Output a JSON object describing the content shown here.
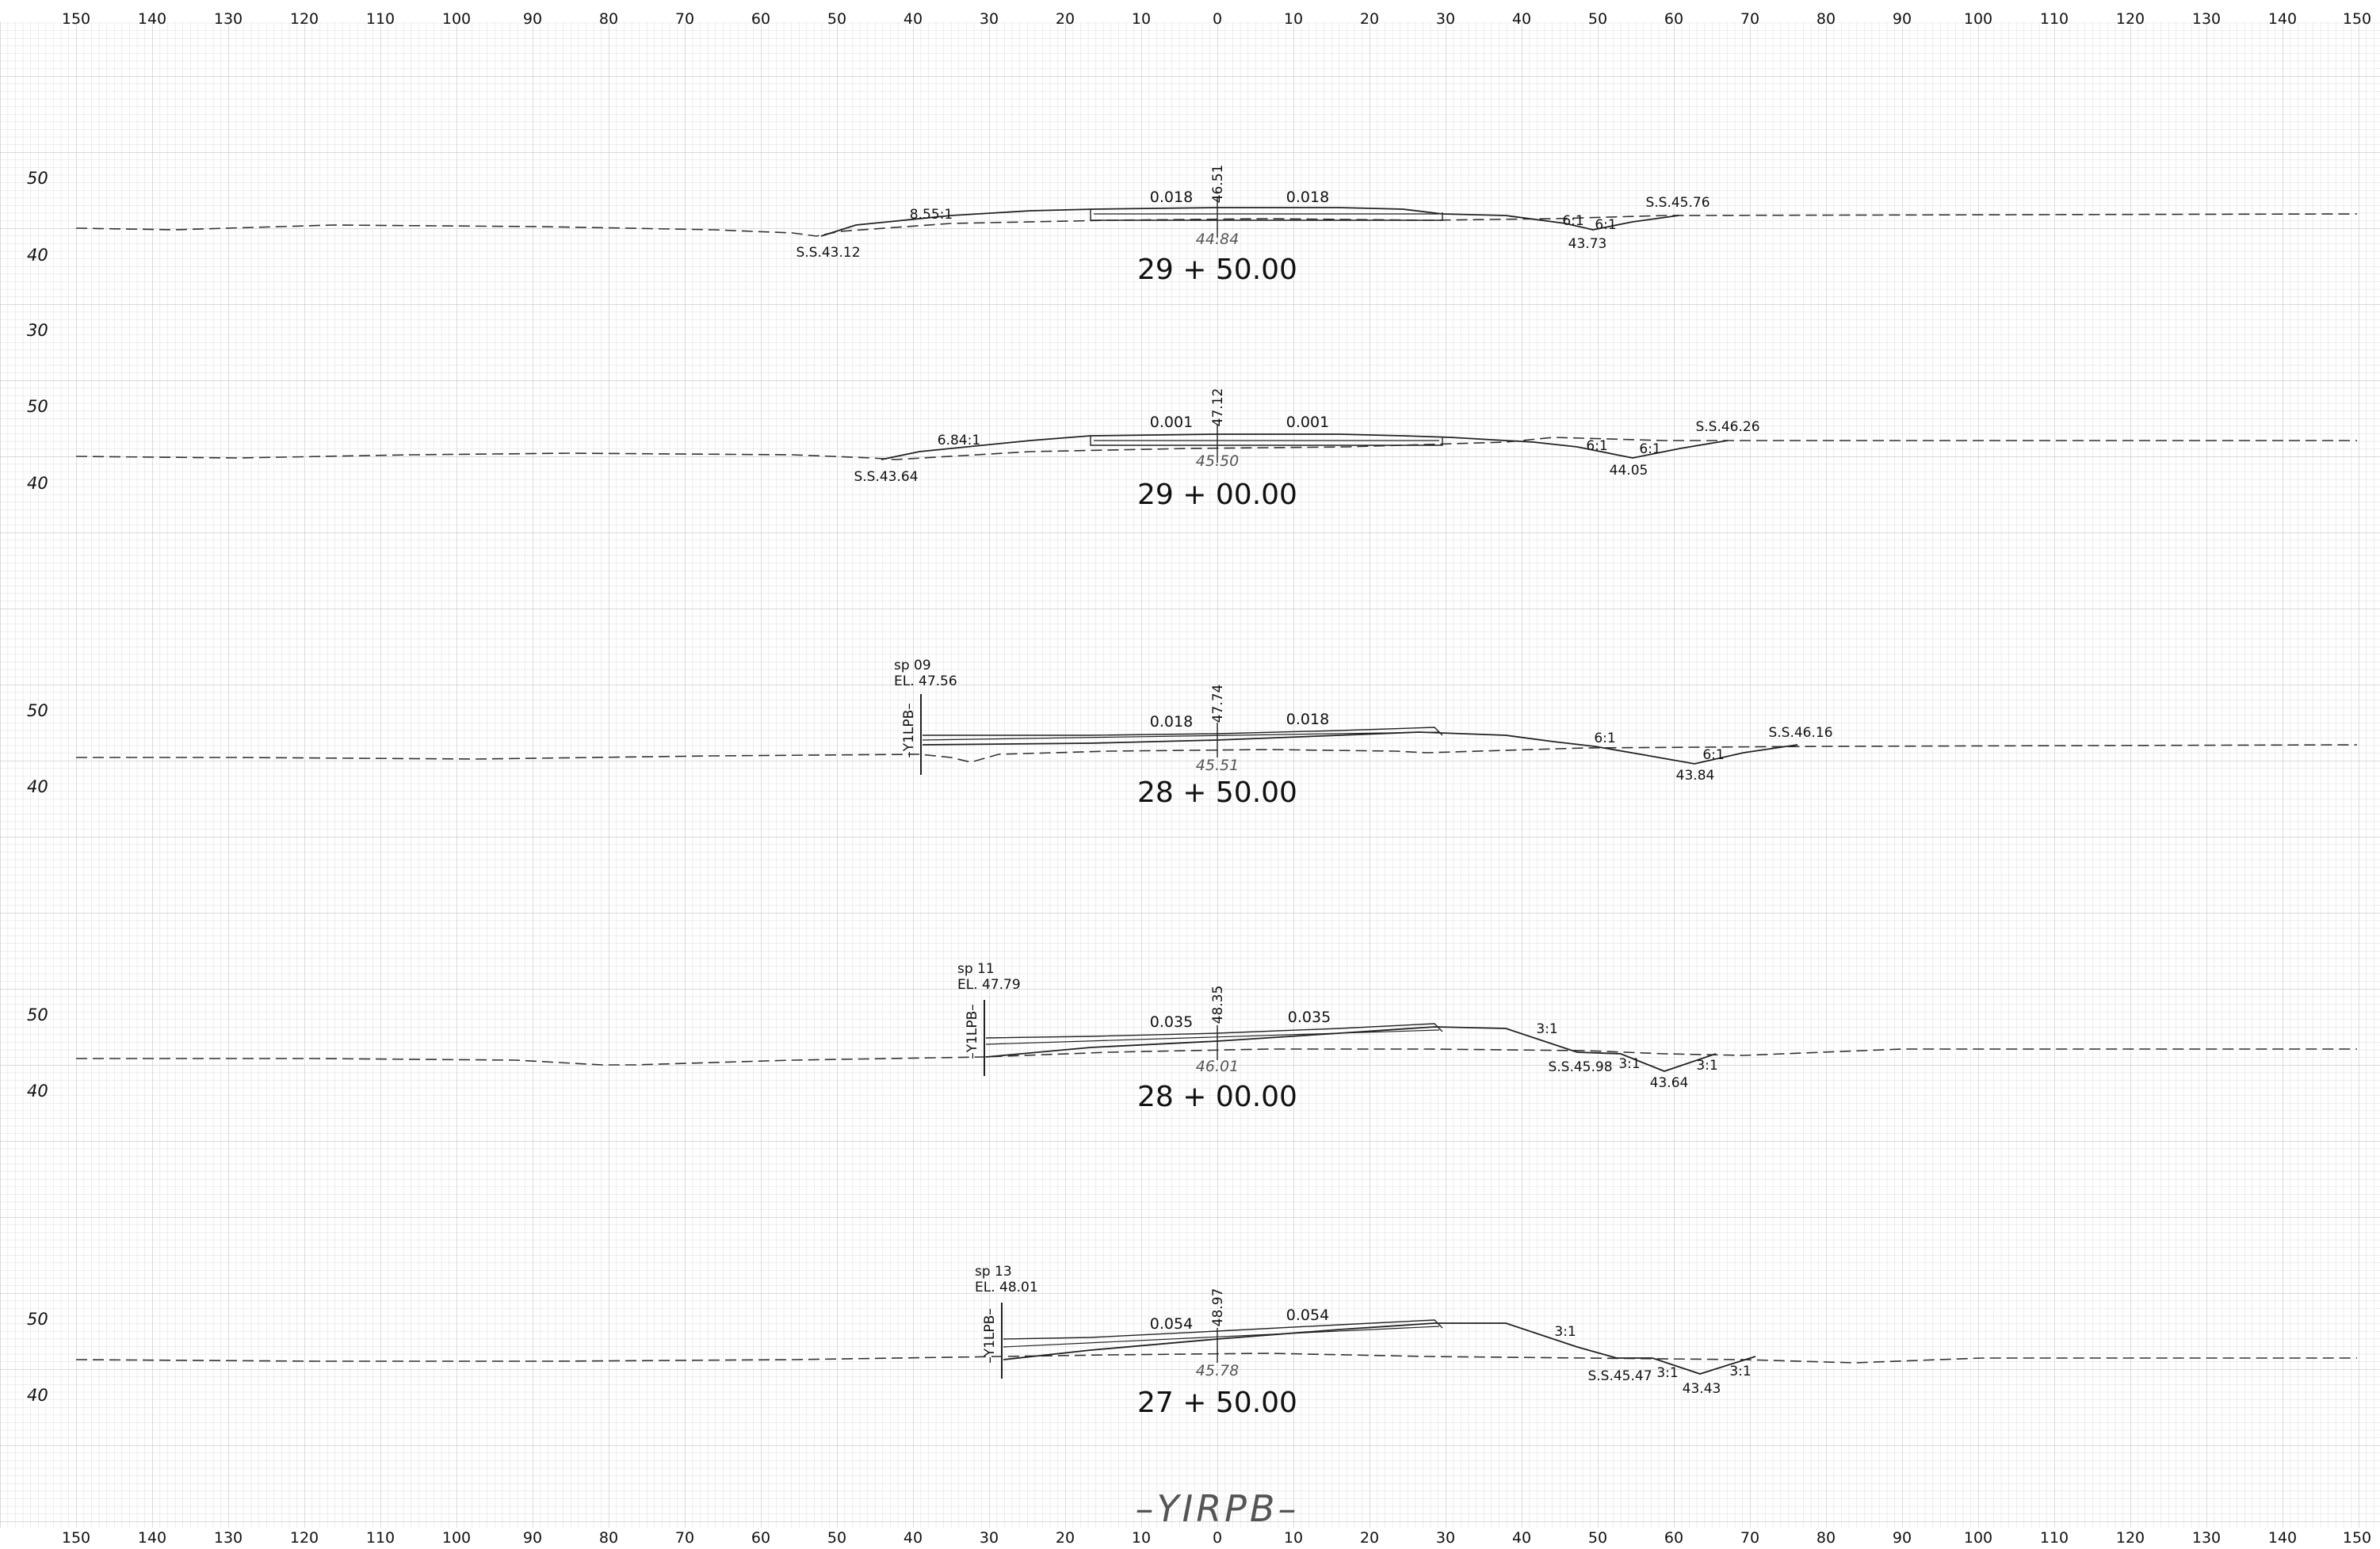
{
  "drawing": {
    "title": "–YIRPB–",
    "x_axis_labels": [
      "150",
      "140",
      "130",
      "120",
      "110",
      "100",
      "90",
      "80",
      "70",
      "60",
      "50",
      "40",
      "30",
      "20",
      "10",
      "0",
      "10",
      "20",
      "30",
      "40",
      "50",
      "60",
      "70",
      "80",
      "90",
      "100",
      "110",
      "120",
      "130",
      "140",
      "150"
    ]
  },
  "sections": [
    {
      "station": "29 + 50.00",
      "elev_labels": [
        "50",
        "40",
        "30"
      ],
      "cl_elev": "46.51",
      "grade_left": "0.018",
      "grade_right": "0.018",
      "ground_elev": "44.84",
      "slope_labels": [
        "8.55:1",
        "6:1",
        "6:1"
      ],
      "left_stake": "S.S.43.12",
      "right_stake": "S.S.45.76",
      "ditch_elev": "43.73"
    },
    {
      "station": "29 + 00.00",
      "elev_labels": [
        "50",
        "40"
      ],
      "cl_elev": "47.12",
      "grade_left": "0.001",
      "grade_right": "0.001",
      "ground_elev": "45.50",
      "slope_labels": [
        "6.84:1",
        "6:1",
        "6:1"
      ],
      "left_stake": "S.S.43.64",
      "right_stake": "S.S.46.26",
      "ditch_elev": "44.05"
    },
    {
      "station": "28 + 50.00",
      "elev_labels": [
        "50",
        "40"
      ],
      "cl_elev": "47.74",
      "grade_left": "0.018",
      "grade_right": "0.018",
      "ground_elev": "45.51",
      "slope_labels": [
        "6:1",
        "6:1"
      ],
      "right_stake": "S.S.46.16",
      "ditch_elev": "43.84",
      "sp": "sp  09",
      "sp_el": "EL. 47.56",
      "tie_label": "–Y1LPB–"
    },
    {
      "station": "28 + 00.00",
      "elev_labels": [
        "50",
        "40"
      ],
      "cl_elev": "48.35",
      "grade_left": "0.035",
      "grade_right": "0.035",
      "ground_elev": "46.01",
      "slope_labels": [
        "3:1",
        "3:1",
        "3:1"
      ],
      "right_stake": "S.S.45.98",
      "ditch_elev": "43.64",
      "sp": "sp  11",
      "sp_el": "EL. 47.79",
      "tie_label": "–Y1LPB–"
    },
    {
      "station": "27 + 50.00",
      "elev_labels": [
        "50",
        "40"
      ],
      "cl_elev": "48.97",
      "grade_left": "0.054",
      "grade_right": "0.054",
      "ground_elev": "45.78",
      "slope_labels": [
        "3:1",
        "3:1",
        "3:1"
      ],
      "right_stake": "S.S.45.47",
      "ditch_elev": "43.43",
      "sp": "sp  13",
      "sp_el": "EL. 48.01",
      "tie_label": "–Y1LPB–"
    }
  ]
}
